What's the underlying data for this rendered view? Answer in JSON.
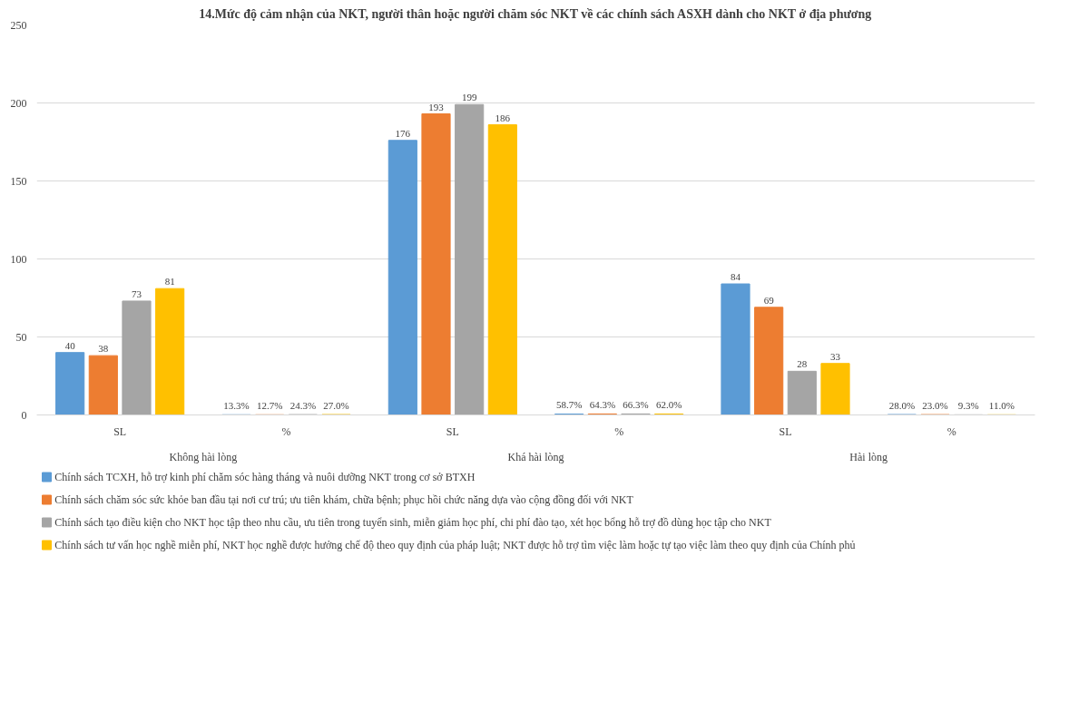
{
  "chart_data": {
    "type": "bar",
    "title": "14.Mức độ cảm nhận của NKT, người thân hoặc người chăm sóc NKT về các chính sách ASXH dành cho NKT ở địa phương",
    "categories": [
      "SL",
      "%",
      "SL",
      "%",
      "SL",
      "%"
    ],
    "annotations": [
      "Không hài lòng",
      "Khá hài lòng",
      "Hài lòng"
    ],
    "series": [
      {
        "name": "Chính sách TCXH, hỗ trợ kinh phí chăm sóc hàng tháng và nuôi dưỡng NKT trong cơ sở BTXH",
        "color": "#5b9bd5",
        "values": [
          40,
          0.133,
          176,
          0.587,
          84,
          0.28
        ],
        "value_labels": [
          "40",
          "13.3%",
          "176",
          "58.7%",
          "84",
          "28.0%"
        ]
      },
      {
        "name": "Chính sách chăm sóc sức khỏe ban đầu tại nơi cư trú; ưu tiên khám, chữa bệnh; phục hồi chức năng dựa vào cộng đồng đối với NKT",
        "color": "#ed7d31",
        "values": [
          38,
          0.127,
          193,
          0.643,
          69,
          0.23
        ],
        "value_labels": [
          "38",
          "12.7%",
          "193",
          "64.3%",
          "69",
          "23.0%"
        ]
      },
      {
        "name": "Chính sách tạo điều kiện cho NKT học tập theo nhu cầu, ưu tiên trong tuyển sinh, miễn giảm học phí, chi phí đào tạo, xét học bổng hỗ trợ đồ dùng học tập cho NKT",
        "color": "#a5a5a5",
        "values": [
          73,
          0.243,
          199,
          0.663,
          28,
          0.093
        ],
        "value_labels": [
          "73",
          "24.3%",
          "199",
          "66.3%",
          "28",
          "9.3%"
        ]
      },
      {
        "name": "Chính sách tư vấn học nghề miễn phí, NKT học nghề được hưởng chế độ theo quy định của pháp luật; NKT được hỗ trợ tìm việc làm hoặc tự tạo việc làm theo quy định của Chính phủ",
        "color": "#ffc000",
        "values": [
          81,
          0.27,
          186,
          0.62,
          33,
          0.11
        ],
        "value_labels": [
          "81",
          "27.0%",
          "186",
          "62.0%",
          "33",
          "11.0%"
        ]
      }
    ],
    "ylim": [
      0,
      250
    ],
    "yticks": [
      0,
      50,
      100,
      150,
      200,
      250
    ],
    "grid": "y",
    "legend": "bottom"
  }
}
